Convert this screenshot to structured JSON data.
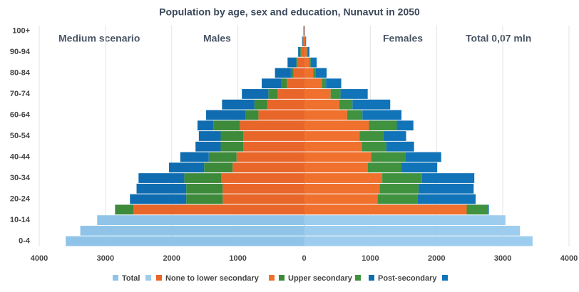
{
  "chart_data": {
    "type": "pyramid",
    "title": "Population by age, sex and education, Nunavut in 2050",
    "annotations": [
      "Medium scenario",
      "Males",
      "Females",
      "Total 0,07 mln"
    ],
    "categories": [
      "0-4",
      null,
      "10-14",
      null,
      "20-24",
      null,
      "30-34",
      null,
      "40-44",
      null,
      "50-54",
      null,
      "60-64",
      null,
      "70-74",
      null,
      "80-84",
      null,
      "90-94",
      null,
      "100+"
    ],
    "xlim": [
      -4000,
      4000
    ],
    "xticks": [
      {
        "value": -4000,
        "label": "4000"
      },
      {
        "value": -3000,
        "label": "3000"
      },
      {
        "value": -2000,
        "label": "2000"
      },
      {
        "value": -1000,
        "label": "1000"
      },
      0,
      1000,
      2000,
      3000,
      4000
    ],
    "grid": true,
    "series": [
      {
        "name": "Total",
        "colors": [
          "#8fc4e8",
          "#9dcdee"
        ],
        "male": [
          3600,
          3380,
          3125,
          null,
          null,
          null,
          null,
          null,
          null,
          null,
          null,
          null,
          null,
          null,
          null,
          null,
          null,
          null,
          null,
          null,
          null
        ],
        "female": [
          3450,
          3260,
          3040,
          null,
          null,
          null,
          null,
          null,
          null,
          null,
          null,
          null,
          null,
          null,
          null,
          null,
          null,
          null,
          null,
          null,
          null
        ]
      },
      {
        "name": "None to lower secondary",
        "colors": [
          "#e8662a",
          "#f0702e"
        ],
        "male": [
          null,
          null,
          null,
          2575,
          1230,
          1230,
          1250,
          1080,
          1020,
          920,
          920,
          970,
          690,
          560,
          400,
          260,
          160,
          100,
          50,
          20,
          5
        ],
        "female": [
          null,
          null,
          null,
          2455,
          1110,
          1140,
          1180,
          960,
          1010,
          870,
          840,
          980,
          650,
          530,
          400,
          270,
          140,
          80,
          40,
          20,
          5
        ]
      },
      {
        "name": "Upper secondary",
        "colors": [
          "#3c8a3a",
          "#40923e"
        ],
        "male": [
          null,
          null,
          null,
          270,
          550,
          550,
          560,
          430,
          420,
          340,
          340,
          400,
          190,
          190,
          140,
          90,
          40,
          20,
          10,
          0,
          0
        ],
        "female": [
          null,
          null,
          null,
          320,
          600,
          590,
          600,
          510,
          520,
          370,
          360,
          420,
          230,
          200,
          150,
          60,
          30,
          20,
          10,
          0,
          0
        ]
      },
      {
        "name": "Post-secondary",
        "colors": [
          "#0f6cb0",
          "#1173b8"
        ],
        "male": [
          null,
          null,
          null,
          10,
          850,
          750,
          690,
          530,
          430,
          380,
          330,
          240,
          600,
          490,
          400,
          290,
          240,
          130,
          30,
          10,
          5
        ],
        "female": [
          null,
          null,
          null,
          15,
          880,
          830,
          790,
          540,
          540,
          420,
          340,
          250,
          590,
          570,
          410,
          230,
          170,
          90,
          30,
          10,
          5
        ]
      }
    ]
  }
}
